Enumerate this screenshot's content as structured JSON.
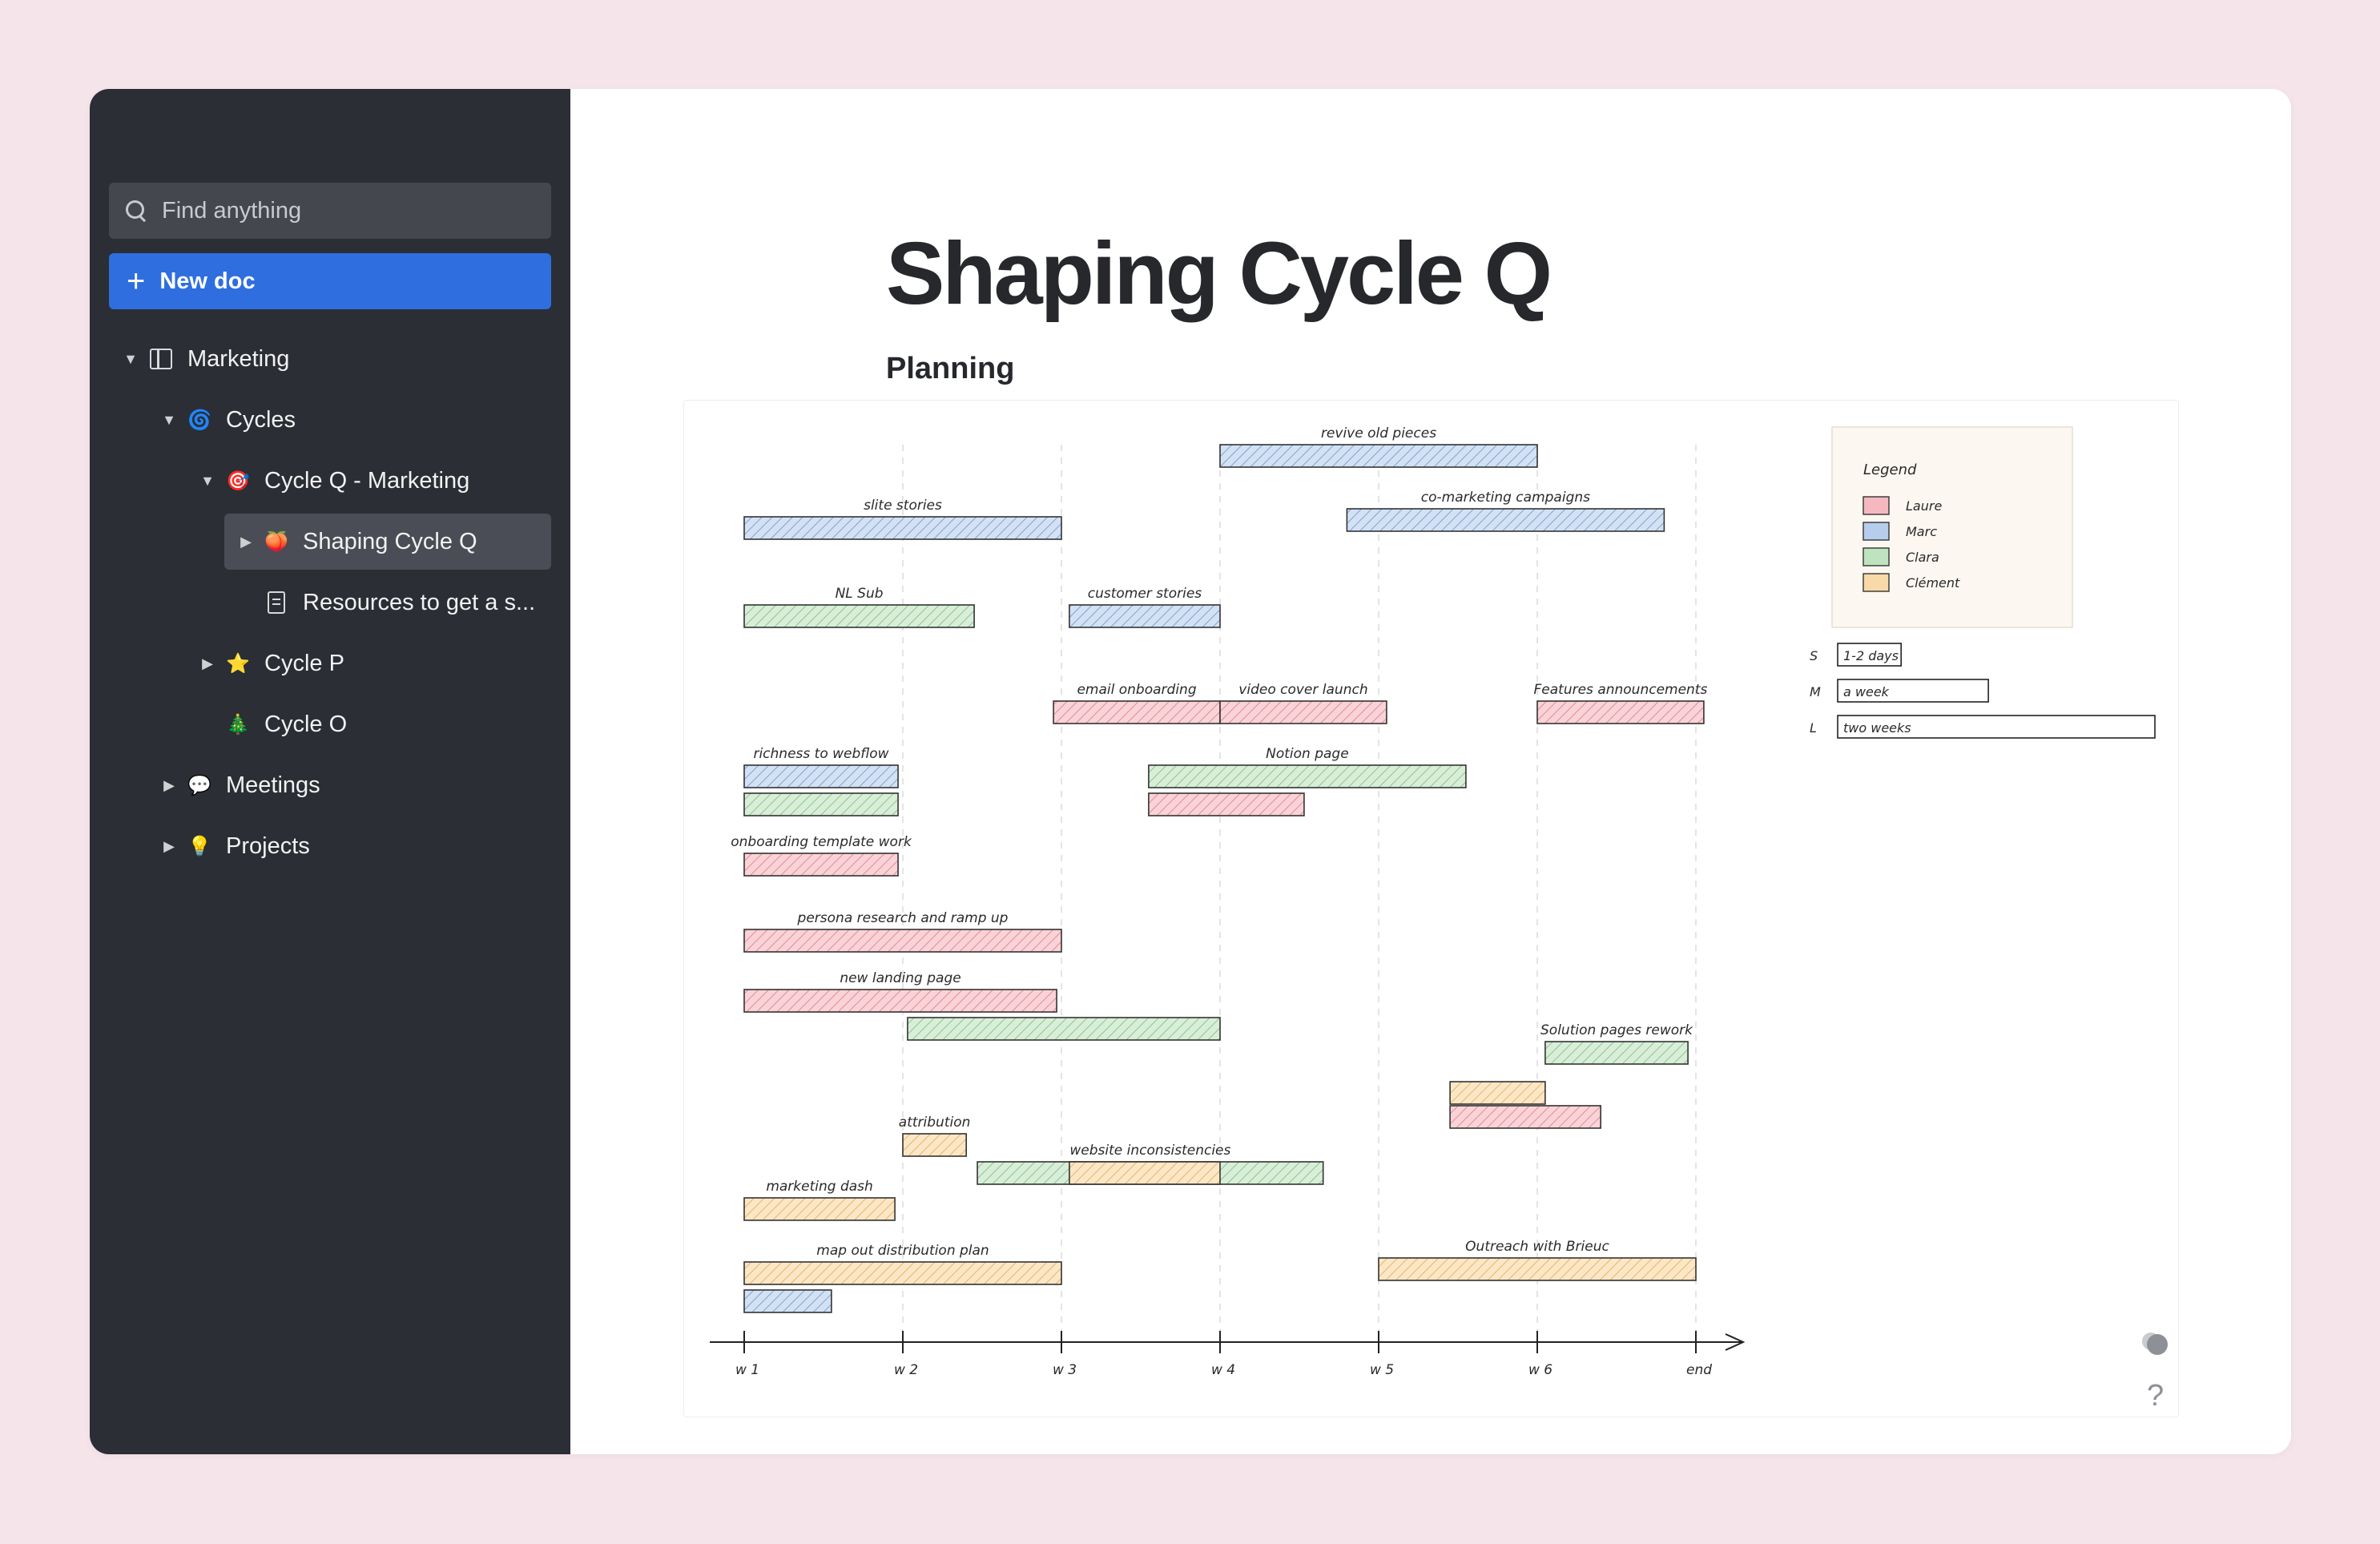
{
  "sidebar": {
    "search": {
      "placeholder": "Find anything"
    },
    "new_doc": {
      "label": "New doc"
    },
    "tree": [
      {
        "label": "Marketing",
        "icon": "book-icon",
        "expanded": true
      },
      {
        "label": "Cycles",
        "icon": "spiral-icon",
        "expanded": true
      },
      {
        "label": "Cycle Q - Marketing",
        "icon": "target-icon",
        "expanded": true
      },
      {
        "label": "Shaping Cycle Q",
        "icon": "peach-icon",
        "expanded": false,
        "active": true
      },
      {
        "label": "Resources to get a s...",
        "icon": "document-icon"
      },
      {
        "label": "Cycle P",
        "icon": "star-icon",
        "expanded": false
      },
      {
        "label": "Cycle O",
        "icon": "tree-icon"
      },
      {
        "label": "Meetings",
        "icon": "speech-bubble-icon",
        "expanded": false
      },
      {
        "label": "Projects",
        "icon": "lightbulb-icon",
        "expanded": false
      }
    ]
  },
  "page": {
    "title": "Shaping Cycle Q",
    "section": "Planning"
  },
  "chart_data": {
    "type": "gantt",
    "x_axis": {
      "ticks": [
        "w 1",
        "w 2",
        "w 3",
        "w 4",
        "w 5",
        "w 6",
        "end"
      ],
      "range": [
        1,
        7
      ]
    },
    "legend": {
      "title": "Legend",
      "entries": [
        {
          "name": "Laure",
          "color": "#f5b8bf"
        },
        {
          "name": "Marc",
          "color": "#b7cdec"
        },
        {
          "name": "Clara",
          "color": "#bfe3bf"
        },
        {
          "name": "Clément",
          "color": "#f8d9a8"
        }
      ]
    },
    "size_key": [
      {
        "key": "S",
        "label": "1-2 days",
        "weeks": 0.4
      },
      {
        "key": "M",
        "label": "a week",
        "weeks": 0.95
      },
      {
        "key": "L",
        "label": "two weeks",
        "weeks": 2.0
      }
    ],
    "tasks": [
      {
        "label": "revive old pieces",
        "owner": "Marc",
        "start": 4.0,
        "end": 6.0
      },
      {
        "label": "slite stories",
        "owner": "Marc",
        "start": 1.0,
        "end": 3.0
      },
      {
        "label": "co-marketing campaigns",
        "owner": "Marc",
        "start": 4.8,
        "end": 6.8
      },
      {
        "label": "NL Sub",
        "owner": "Clara",
        "start": 1.0,
        "end": 2.45
      },
      {
        "label": "customer stories",
        "owner": "Marc",
        "start": 3.05,
        "end": 4.0
      },
      {
        "label": "email onboarding",
        "owner": "Laure",
        "start": 2.95,
        "end": 4.0
      },
      {
        "label": "video cover launch",
        "owner": "Laure",
        "start": 4.0,
        "end": 5.05
      },
      {
        "label": "Features announcements",
        "owner": "Laure",
        "start": 6.0,
        "end": 7.05
      },
      {
        "label": "richness to webflow",
        "owner": "Marc",
        "start": 1.0,
        "end": 1.97
      },
      {
        "label": "",
        "owner": "Clara",
        "start": 1.0,
        "end": 1.97
      },
      {
        "label": "Notion page",
        "owner": "Clara",
        "start": 3.55,
        "end": 5.55
      },
      {
        "label": "",
        "owner": "Laure",
        "start": 3.55,
        "end": 4.53
      },
      {
        "label": "onboarding template work",
        "owner": "Laure",
        "start": 1.0,
        "end": 1.97
      },
      {
        "label": "persona research and ramp up",
        "owner": "Laure",
        "start": 1.0,
        "end": 3.0
      },
      {
        "label": "new landing page",
        "owner": "Laure",
        "start": 1.0,
        "end": 2.97
      },
      {
        "label": "",
        "owner": "Clara",
        "start": 2.03,
        "end": 4.0
      },
      {
        "label": "Solution pages rework",
        "owner": "Clara",
        "start": 6.05,
        "end": 6.95
      },
      {
        "label": "",
        "owner": "Clément",
        "start": 5.45,
        "end": 6.05
      },
      {
        "label": "",
        "owner": "Laure",
        "start": 5.45,
        "end": 6.4
      },
      {
        "label": "attribution",
        "owner": "Clément",
        "start": 2.0,
        "end": 2.4
      },
      {
        "label": "website inconsistencies",
        "owner": "Clara",
        "start": 2.47,
        "end": 4.65
      },
      {
        "label": "",
        "owner": "Clément",
        "start": 3.05,
        "end": 4.0
      },
      {
        "label": "marketing dash",
        "owner": "Clément",
        "start": 1.0,
        "end": 1.95
      },
      {
        "label": "map out distribution plan",
        "owner": "Clément",
        "start": 1.0,
        "end": 3.0
      },
      {
        "label": "",
        "owner": "Marc",
        "start": 1.0,
        "end": 1.55
      },
      {
        "label": "Outreach with Brieuc",
        "owner": "Clément",
        "start": 5.0,
        "end": 7.0
      }
    ]
  }
}
